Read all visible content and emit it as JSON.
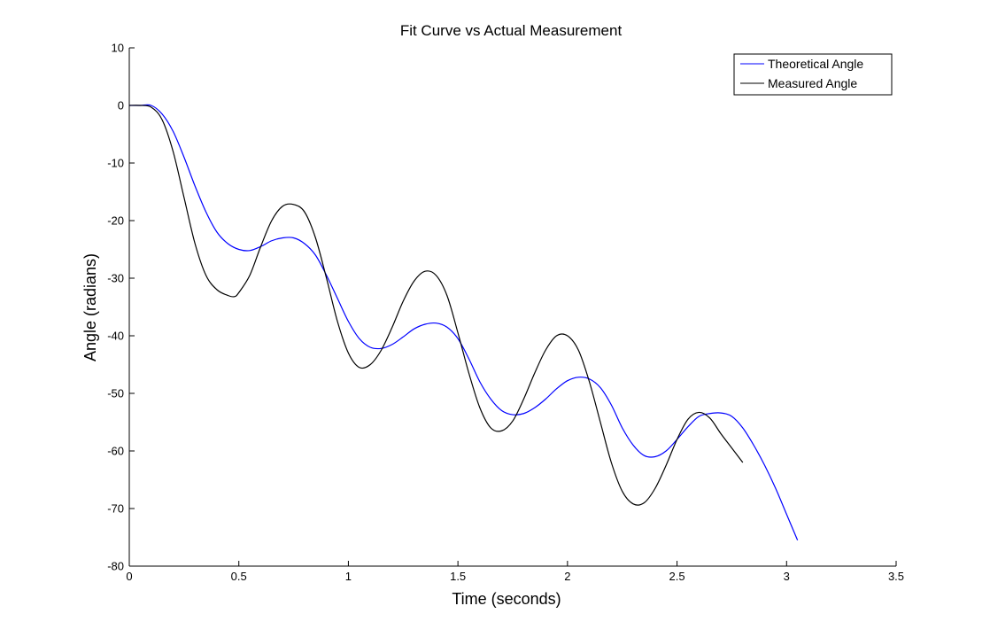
{
  "chart_data": {
    "type": "line",
    "title": "Fit Curve vs Actual Measurement",
    "xlabel": "Time (seconds)",
    "ylabel": "Angle (radians)",
    "xlim": [
      0,
      3.5
    ],
    "ylim": [
      -80,
      10
    ],
    "xticks": [
      0,
      0.5,
      1,
      1.5,
      2,
      2.5,
      3,
      3.5
    ],
    "xtick_labels": [
      "0",
      "0.5",
      "1",
      "1.5",
      "2",
      "2.5",
      "3",
      "3.5"
    ],
    "yticks": [
      10,
      0,
      -10,
      -20,
      -30,
      -40,
      -50,
      -60,
      -70,
      -80
    ],
    "ytick_labels": [
      "10",
      "0",
      "-10",
      "-20",
      "-30",
      "-40",
      "-50",
      "-60",
      "-70",
      "-80"
    ],
    "grid": false,
    "legend_position": "top-right",
    "series": [
      {
        "name": "Theoretical Angle",
        "color": "#0000ff",
        "x": [
          0,
          0.05,
          0.1,
          0.15,
          0.2,
          0.25,
          0.3,
          0.35,
          0.4,
          0.45,
          0.5,
          0.55,
          0.6,
          0.65,
          0.7,
          0.75,
          0.8,
          0.85,
          0.9,
          0.95,
          1.0,
          1.05,
          1.1,
          1.15,
          1.2,
          1.25,
          1.3,
          1.35,
          1.4,
          1.45,
          1.5,
          1.55,
          1.6,
          1.65,
          1.7,
          1.75,
          1.8,
          1.85,
          1.9,
          1.95,
          2.0,
          2.05,
          2.1,
          2.15,
          2.2,
          2.25,
          2.3,
          2.35,
          2.4,
          2.45,
          2.5,
          2.55,
          2.6,
          2.65,
          2.7,
          2.75,
          2.8,
          2.85,
          2.9,
          2.95,
          3.0,
          3.05
        ],
        "y": [
          0,
          0,
          0,
          -1.5,
          -4.5,
          -9,
          -14,
          -18.5,
          -22,
          -24,
          -25,
          -25.2,
          -24.5,
          -23.5,
          -23,
          -23,
          -24,
          -26,
          -29.5,
          -33.5,
          -37.5,
          -40.5,
          -42,
          -42.2,
          -41.5,
          -40.2,
          -38.8,
          -38,
          -37.8,
          -38.5,
          -40.5,
          -44,
          -48,
          -51,
          -53,
          -53.7,
          -53.5,
          -52.5,
          -51,
          -49.2,
          -47.8,
          -47.2,
          -47.5,
          -49,
          -52,
          -56,
          -59,
          -60.8,
          -61,
          -60,
          -58,
          -55.8,
          -54,
          -53.5,
          -53.4,
          -54,
          -56,
          -59,
          -62.5,
          -66.5,
          -71,
          -75.5
        ]
      },
      {
        "name": "Measured Angle",
        "color": "#000000",
        "x": [
          0,
          0.05,
          0.1,
          0.15,
          0.2,
          0.25,
          0.3,
          0.35,
          0.4,
          0.45,
          0.48,
          0.5,
          0.55,
          0.6,
          0.65,
          0.7,
          0.75,
          0.8,
          0.85,
          0.9,
          0.95,
          1.0,
          1.05,
          1.1,
          1.15,
          1.2,
          1.25,
          1.3,
          1.35,
          1.4,
          1.45,
          1.5,
          1.55,
          1.6,
          1.65,
          1.7,
          1.75,
          1.8,
          1.85,
          1.9,
          1.95,
          2.0,
          2.05,
          2.1,
          2.15,
          2.2,
          2.25,
          2.3,
          2.35,
          2.4,
          2.45,
          2.5,
          2.55,
          2.6,
          2.65,
          2.7,
          2.75,
          2.8
        ],
        "y": [
          0,
          0,
          -0.3,
          -2.5,
          -8,
          -16,
          -24,
          -29.5,
          -32,
          -33,
          -33.2,
          -32.5,
          -29.5,
          -24.5,
          -20,
          -17.5,
          -17.2,
          -18.5,
          -23,
          -30,
          -37.5,
          -43,
          -45.5,
          -45,
          -42.5,
          -38.5,
          -34,
          -30.5,
          -28.8,
          -29.5,
          -33,
          -39.5,
          -46.5,
          -52.5,
          -56,
          -56.5,
          -54.8,
          -51,
          -46.5,
          -42.5,
          -40,
          -40,
          -42.5,
          -48,
          -55,
          -62,
          -67,
          -69.2,
          -69,
          -66.5,
          -62.5,
          -58,
          -54.5,
          -53.3,
          -54.3,
          -57,
          -59.5,
          -62
        ]
      }
    ]
  }
}
